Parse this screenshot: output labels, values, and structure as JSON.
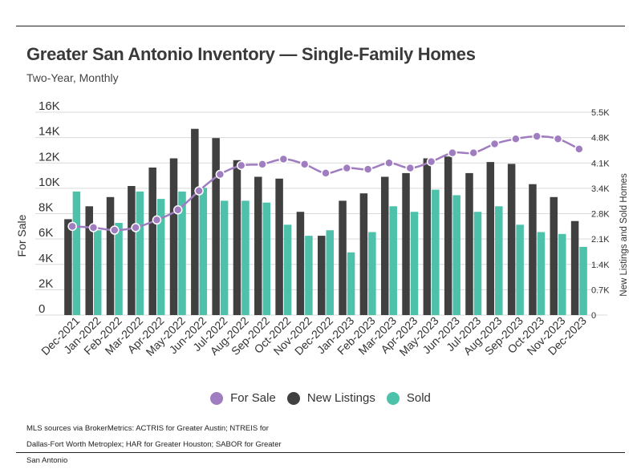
{
  "header": {
    "title": "Greater San Antonio Inventory — Single-Family Homes",
    "subtitle": "Two-Year, Monthly"
  },
  "source_note": "MLS sources via BrokerMetrics: ACTRIS for Greater Austin; NTREIS for Dallas-Fort Worth Metroplex; HAR for Greater Houston; SABOR for Greater San Antonio",
  "colors": {
    "for_sale": "#a07cc0",
    "new_listings": "#404040",
    "sold": "#4ec1ab",
    "grid": "#d9d9d9"
  },
  "chart_data": {
    "type": "bar",
    "categories": [
      "Dec-2021",
      "Jan-2022",
      "Feb-2022",
      "Mar-2022",
      "Apr-2022",
      "May-2022",
      "Jun-2022",
      "Jul-2022",
      "Aug-2022",
      "Sep-2022",
      "Oct-2022",
      "Nov-2022",
      "Dec-2022",
      "Jan-2023",
      "Feb-2023",
      "Mar-2023",
      "Apr-2023",
      "May-2023",
      "Jun-2023",
      "Jul-2023",
      "Aug-2023",
      "Sep-2023",
      "Oct-2023",
      "Nov-2023",
      "Dec-2023"
    ],
    "left_axis": {
      "label": "For Sale",
      "ylim": [
        0,
        16000
      ],
      "ticks": [
        0,
        2000,
        4000,
        6000,
        8000,
        10000,
        12000,
        14000,
        16000
      ],
      "tick_labels": [
        "0",
        "2K",
        "4K",
        "6K",
        "8K",
        "10K",
        "12K",
        "14K",
        "16K"
      ]
    },
    "right_axis": {
      "label": "New Listings and Sold Homes",
      "ylim": [
        0,
        5500
      ],
      "ticks": [
        0,
        700,
        1400,
        2100,
        2800,
        3400,
        4100,
        4800,
        5500
      ],
      "tick_labels": [
        "0",
        "0.7K",
        "1.4K",
        "2.1K",
        "2.8K",
        "3.4K",
        "4.1K",
        "4.8K",
        "5.5K"
      ]
    },
    "grid": true,
    "legend_position": "bottom",
    "series": [
      {
        "name": "For Sale",
        "type": "line",
        "axis": "left",
        "values": [
          7000,
          6900,
          6700,
          6900,
          7500,
          8300,
          9800,
          11100,
          11800,
          11900,
          12300,
          11900,
          11200,
          11600,
          11500,
          12000,
          11600,
          12100,
          12800,
          12800,
          13500,
          13900,
          14100,
          13900,
          13100
        ]
      },
      {
        "name": "New Listings",
        "type": "bar",
        "axis": "right",
        "values": [
          2600,
          2950,
          3200,
          3500,
          4000,
          4250,
          5050,
          4800,
          4200,
          3750,
          3700,
          2800,
          2150,
          3100,
          3300,
          3750,
          3850,
          4250,
          4300,
          3850,
          4150,
          4100,
          3550,
          3200,
          2550
        ]
      },
      {
        "name": "Sold",
        "type": "bar",
        "axis": "right",
        "values": [
          3350,
          2300,
          2500,
          3350,
          3150,
          3350,
          3450,
          3100,
          3100,
          3050,
          2450,
          2150,
          2300,
          1700,
          2250,
          2950,
          2800,
          3400,
          3250,
          2800,
          2950,
          2450,
          2250,
          2200,
          1850
        ]
      }
    ]
  }
}
